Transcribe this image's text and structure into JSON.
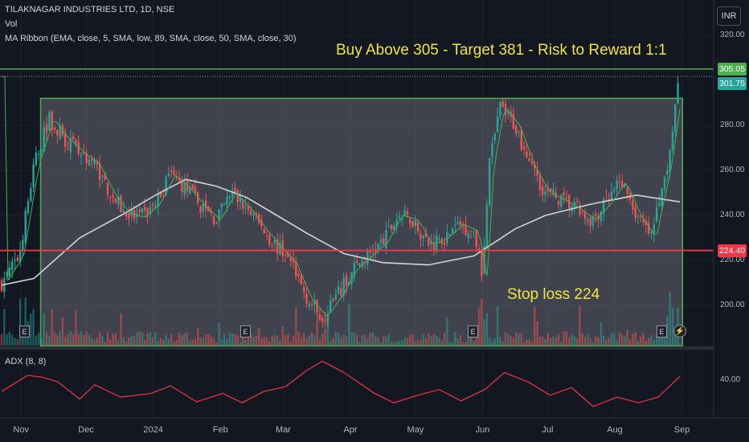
{
  "header": {
    "symbol_line": "TILAKNAGAR INDUSTRIES LTD, 1D, NSE",
    "vol_label": "Vol",
    "ribbon_label": "MA Ribbon (EMA, close, 5, SMA, low, 89, SMA, close, 50, SMA, close, 30)"
  },
  "currency_button": "INR",
  "annotations": {
    "trade_setup": "Buy Above 305 - Target 381 - Risk to Reward 1:1",
    "stop_loss": "Stop loss 224"
  },
  "price_labels": {
    "buy_level": "305.05",
    "last_price": "301.75",
    "stop_level": "224.40"
  },
  "adx_label": "ADX (8, 8)",
  "earnings_marker": "E",
  "colors": {
    "background": "#131722",
    "up": "#26a69a",
    "down": "#ef5350",
    "buy_line": "#4caf50",
    "stop_line": "#f23645",
    "annotation": "#f0e442",
    "adx": "#f23645",
    "ma_slow": "#d1d4dc",
    "ma_fast": "#4caf50"
  },
  "chart_data": {
    "type": "candlestick",
    "title": "TILAKNAGAR INDUSTRIES LTD, 1D, NSE",
    "ylim": [
      180,
      325
    ],
    "y_ticks": [
      "320.00",
      "280.00",
      "260.00",
      "240.00",
      "220.00",
      "200.00"
    ],
    "x_ticks": [
      "Nov",
      "Dec",
      "2024",
      "Feb",
      "Mar",
      "Apr",
      "May",
      "Jun",
      "Jul",
      "Aug",
      "Sep"
    ],
    "price_path": [
      {
        "date": "2023-10-26",
        "close": 210
      },
      {
        "date": "2023-11-03",
        "close": 222
      },
      {
        "date": "2023-11-10",
        "close": 262
      },
      {
        "date": "2023-11-17",
        "close": 283
      },
      {
        "date": "2023-11-24",
        "close": 274
      },
      {
        "date": "2023-12-01",
        "close": 268
      },
      {
        "date": "2023-12-08",
        "close": 263
      },
      {
        "date": "2023-12-15",
        "close": 250
      },
      {
        "date": "2023-12-22",
        "close": 241
      },
      {
        "date": "2023-12-29",
        "close": 239
      },
      {
        "date": "2024-01-05",
        "close": 245
      },
      {
        "date": "2024-01-12",
        "close": 258
      },
      {
        "date": "2024-01-19",
        "close": 252
      },
      {
        "date": "2024-01-26",
        "close": 244
      },
      {
        "date": "2024-02-02",
        "close": 238
      },
      {
        "date": "2024-02-09",
        "close": 250
      },
      {
        "date": "2024-02-16",
        "close": 243
      },
      {
        "date": "2024-02-23",
        "close": 234
      },
      {
        "date": "2024-03-01",
        "close": 226
      },
      {
        "date": "2024-03-08",
        "close": 219
      },
      {
        "date": "2024-03-15",
        "close": 203
      },
      {
        "date": "2024-03-22",
        "close": 195
      },
      {
        "date": "2024-03-29",
        "close": 204
      },
      {
        "date": "2024-04-05",
        "close": 216
      },
      {
        "date": "2024-04-12",
        "close": 222
      },
      {
        "date": "2024-04-19",
        "close": 228
      },
      {
        "date": "2024-04-26",
        "close": 240
      },
      {
        "date": "2024-05-03",
        "close": 238
      },
      {
        "date": "2024-05-10",
        "close": 227
      },
      {
        "date": "2024-05-17",
        "close": 230
      },
      {
        "date": "2024-05-24",
        "close": 236
      },
      {
        "date": "2024-05-31",
        "close": 233
      },
      {
        "date": "2024-06-04",
        "close": 212
      },
      {
        "date": "2024-06-07",
        "close": 262
      },
      {
        "date": "2024-06-12",
        "close": 288
      },
      {
        "date": "2024-06-19",
        "close": 280
      },
      {
        "date": "2024-06-26",
        "close": 262
      },
      {
        "date": "2024-07-03",
        "close": 250
      },
      {
        "date": "2024-07-10",
        "close": 247
      },
      {
        "date": "2024-07-17",
        "close": 243
      },
      {
        "date": "2024-07-24",
        "close": 238
      },
      {
        "date": "2024-07-31",
        "close": 245
      },
      {
        "date": "2024-08-07",
        "close": 255
      },
      {
        "date": "2024-08-14",
        "close": 240
      },
      {
        "date": "2024-08-21",
        "close": 230
      },
      {
        "date": "2024-08-23",
        "close": 240
      },
      {
        "date": "2024-08-28",
        "close": 262
      },
      {
        "date": "2024-08-31",
        "close": 282
      },
      {
        "date": "2024-09-03",
        "close": 301.75
      }
    ],
    "ma_slow_path": [
      {
        "date": "2023-10-26",
        "value": 209
      },
      {
        "date": "2023-11-10",
        "value": 212
      },
      {
        "date": "2023-12-01",
        "value": 230
      },
      {
        "date": "2023-12-22",
        "value": 241
      },
      {
        "date": "2024-01-05",
        "value": 249
      },
      {
        "date": "2024-01-19",
        "value": 256
      },
      {
        "date": "2024-02-02",
        "value": 253
      },
      {
        "date": "2024-02-16",
        "value": 248
      },
      {
        "date": "2024-03-01",
        "value": 240
      },
      {
        "date": "2024-03-15",
        "value": 232
      },
      {
        "date": "2024-04-01",
        "value": 223
      },
      {
        "date": "2024-04-19",
        "value": 219
      },
      {
        "date": "2024-05-10",
        "value": 218
      },
      {
        "date": "2024-05-31",
        "value": 222
      },
      {
        "date": "2024-06-19",
        "value": 234
      },
      {
        "date": "2024-07-03",
        "value": 240
      },
      {
        "date": "2024-07-24",
        "value": 245
      },
      {
        "date": "2024-08-14",
        "value": 249
      },
      {
        "date": "2024-09-03",
        "value": 246
      }
    ],
    "levels": {
      "buy_above": 305.05,
      "last_close": 301.75,
      "stop_loss": 224.4,
      "range_high": 292,
      "range_low": 182
    },
    "adx": {
      "y_ticks": [
        "40.00"
      ],
      "ylim": [
        0,
        70
      ],
      "path": [
        {
          "date": "2023-10-26",
          "value": 28
        },
        {
          "date": "2023-11-07",
          "value": 45
        },
        {
          "date": "2023-11-14",
          "value": 43
        },
        {
          "date": "2023-11-21",
          "value": 38
        },
        {
          "date": "2023-12-01",
          "value": 20
        },
        {
          "date": "2023-12-08",
          "value": 35
        },
        {
          "date": "2023-12-20",
          "value": 22
        },
        {
          "date": "2024-01-03",
          "value": 26
        },
        {
          "date": "2024-01-12",
          "value": 34
        },
        {
          "date": "2024-01-24",
          "value": 17
        },
        {
          "date": "2024-02-05",
          "value": 26
        },
        {
          "date": "2024-02-14",
          "value": 16
        },
        {
          "date": "2024-02-24",
          "value": 28
        },
        {
          "date": "2024-03-05",
          "value": 33
        },
        {
          "date": "2024-03-14",
          "value": 49
        },
        {
          "date": "2024-03-22",
          "value": 60
        },
        {
          "date": "2024-04-01",
          "value": 48
        },
        {
          "date": "2024-04-15",
          "value": 26
        },
        {
          "date": "2024-04-24",
          "value": 16
        },
        {
          "date": "2024-05-05",
          "value": 24
        },
        {
          "date": "2024-05-15",
          "value": 30
        },
        {
          "date": "2024-05-25",
          "value": 18
        },
        {
          "date": "2024-06-05",
          "value": 30
        },
        {
          "date": "2024-06-14",
          "value": 48
        },
        {
          "date": "2024-06-25",
          "value": 38
        },
        {
          "date": "2024-07-05",
          "value": 24
        },
        {
          "date": "2024-07-15",
          "value": 32
        },
        {
          "date": "2024-07-25",
          "value": 12
        },
        {
          "date": "2024-08-05",
          "value": 22
        },
        {
          "date": "2024-08-15",
          "value": 16
        },
        {
          "date": "2024-08-24",
          "value": 22
        },
        {
          "date": "2024-09-03",
          "value": 44
        }
      ]
    },
    "earnings_dates": [
      "2023-10-26",
      "2024-02-05",
      "2024-05-20",
      "2024-08-15"
    ]
  }
}
